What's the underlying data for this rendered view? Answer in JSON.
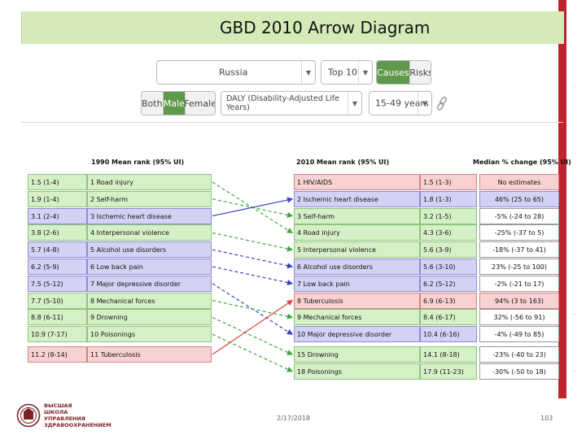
{
  "title": "GBD 2010 Arrow Diagram",
  "controls": {
    "country": "Russia",
    "top_n": "Top 10",
    "cause_risk": {
      "options": [
        "Causes",
        "Risks"
      ],
      "active": "Causes"
    },
    "sex": {
      "options": [
        "Both",
        "Male",
        "Female"
      ],
      "active": "Male"
    },
    "metric": "DALY (Disability-Adjusted Life Years)",
    "age": "15-49 years"
  },
  "headers": {
    "left": "1990 Mean rank (95% UI)",
    "right": "2010 Mean rank (95% UI)",
    "change": "Median % change (95% UI)"
  },
  "left_rows": [
    {
      "rank": "1.5 (1-4)",
      "cause": "1 Road injury",
      "color": "g"
    },
    {
      "rank": "1.9 (1-4)",
      "cause": "2 Self-harm",
      "color": "g"
    },
    {
      "rank": "3.1 (2-4)",
      "cause": "3 Ischemic heart disease",
      "color": "b"
    },
    {
      "rank": "3.8 (2-6)",
      "cause": "4 Interpersonal violence",
      "color": "g"
    },
    {
      "rank": "5.7 (4-8)",
      "cause": "5 Alcohol use disorders",
      "color": "b"
    },
    {
      "rank": "6.2 (5-9)",
      "cause": "6 Low back pain",
      "color": "b"
    },
    {
      "rank": "7.5 (5-12)",
      "cause": "7 Major depressive disorder",
      "color": "b"
    },
    {
      "rank": "7.7 (5-10)",
      "cause": "8 Mechanical forces",
      "color": "g"
    },
    {
      "rank": "8.8 (6-11)",
      "cause": "9 Drowning",
      "color": "g"
    },
    {
      "rank": "10.9 (7-17)",
      "cause": "10 Poisonings",
      "color": "g"
    },
    {
      "rank": "11.2 (8-14)",
      "cause": "11 Tuberculosis",
      "color": "r"
    }
  ],
  "right_rows": [
    {
      "cause": "1 HIV/AIDS",
      "rank": "1.5 (1-3)",
      "change": "No estimates",
      "color": "r",
      "change_color": "r"
    },
    {
      "cause": "2 Ischemic heart disease",
      "rank": "1.8 (1-3)",
      "change": "46% (25 to 65)",
      "color": "b",
      "change_color": "b"
    },
    {
      "cause": "3 Self-harm",
      "rank": "3.2 (1-5)",
      "change": "-5% (-24 to 28)",
      "color": "g",
      "change_color": "w"
    },
    {
      "cause": "4 Road injury",
      "rank": "4.3 (3-6)",
      "change": "-25% (-37 to 5)",
      "color": "g",
      "change_color": "w"
    },
    {
      "cause": "5 Interpersonal violence",
      "rank": "5.6 (3-9)",
      "change": "-18% (-37 to 41)",
      "color": "g",
      "change_color": "w"
    },
    {
      "cause": "6 Alcohol use disorders",
      "rank": "5.6 (3-10)",
      "change": "23% (-25 to 100)",
      "color": "b",
      "change_color": "w"
    },
    {
      "cause": "7 Low back pain",
      "rank": "6.2 (5-12)",
      "change": "-2% (-21 to 17)",
      "color": "b",
      "change_color": "w"
    },
    {
      "cause": "8 Tuberculosis",
      "rank": "6.9 (6-13)",
      "change": "94% (3 to 163)",
      "color": "r",
      "change_color": "r"
    },
    {
      "cause": "9 Mechanical forces",
      "rank": "8.4 (6-17)",
      "change": "32% (-56 to 91)",
      "color": "g",
      "change_color": "w"
    },
    {
      "cause": "10 Major depressive disorder",
      "rank": "10.4 (6-16)",
      "change": "-4% (-49 to 85)",
      "color": "b",
      "change_color": "w"
    },
    {
      "cause": "15 Drowning",
      "rank": "14.1 (8-18)",
      "change": "-23% (-40 to 23)",
      "color": "g",
      "change_color": "w"
    },
    {
      "cause": "18 Poisonings",
      "rank": "17.9 (11-23)",
      "change": "-30% (-50 to 18)",
      "color": "g",
      "change_color": "w"
    }
  ],
  "arrows": [
    {
      "from": 1,
      "to": 4,
      "dashed": true,
      "color": "#3fa63f"
    },
    {
      "from": 2,
      "to": 3,
      "dashed": true,
      "color": "#3fa63f"
    },
    {
      "from": 3,
      "to": 2,
      "dashed": false,
      "color": "#3b3fc0"
    },
    {
      "from": 4,
      "to": 5,
      "dashed": true,
      "color": "#3fa63f"
    },
    {
      "from": 5,
      "to": 6,
      "dashed": true,
      "color": "#3b3fc0"
    },
    {
      "from": 6,
      "to": 7,
      "dashed": true,
      "color": "#3b3fc0"
    },
    {
      "from": 7,
      "to": 10,
      "dashed": true,
      "color": "#3b3fc0"
    },
    {
      "from": 8,
      "to": 9,
      "dashed": true,
      "color": "#3fa63f"
    },
    {
      "from": 9,
      "to": 15,
      "dashed": true,
      "color": "#3fa63f"
    },
    {
      "from": 10,
      "to": 18,
      "dashed": true,
      "color": "#3fa63f"
    },
    {
      "from": 11,
      "to": 8,
      "dashed": false,
      "color": "#e04040"
    }
  ],
  "footer": {
    "logo_lines": [
      "ВЫСШАЯ",
      "ШКОЛА",
      "УПРАВЛЕНИЯ",
      "ЗДРАВООХРАНЕНИЕМ"
    ],
    "date": "2/17/2018",
    "page": "103"
  },
  "colors": {
    "green": "#d5f0c7",
    "blue": "#d4d2f4",
    "red": "#f8d2d2",
    "accent": "#5f9a4c",
    "brand": "#c0242c"
  }
}
